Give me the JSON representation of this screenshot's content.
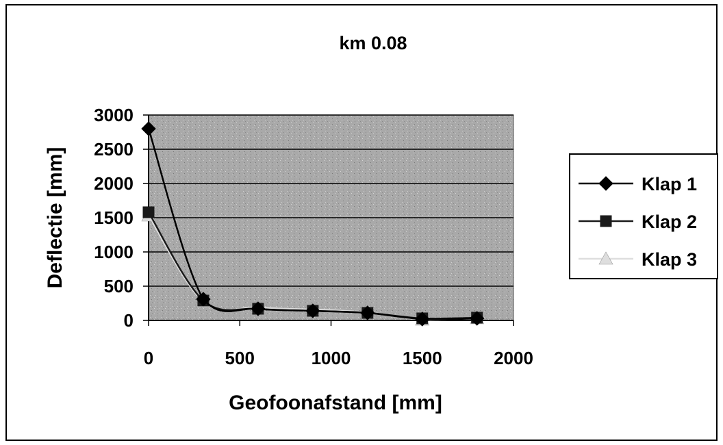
{
  "chart_data": {
    "type": "line",
    "title": "km 0.08",
    "xlabel": "Geofoonafstand [mm]",
    "ylabel": "Deflectie [mm]",
    "xlim": [
      0,
      2000
    ],
    "ylim": [
      0,
      3000
    ],
    "x_ticks": [
      "0",
      "500",
      "1000",
      "1500",
      "2000"
    ],
    "y_ticks": [
      "0",
      "500",
      "1000",
      "1500",
      "2000",
      "2500",
      "3000"
    ],
    "grid": true,
    "legend_position": "right",
    "colors": {
      "plot_background": "#a9a9a9",
      "gridline": "#000000",
      "klap1": "#000000",
      "klap2": "#1a1a1a",
      "klap3": "#dedede"
    },
    "series": [
      {
        "name": "Klap 1",
        "marker": "diamond",
        "x": [
          0,
          300,
          600,
          900,
          1200,
          1500,
          1800
        ],
        "y": [
          2800,
          310,
          170,
          140,
          110,
          20,
          30
        ]
      },
      {
        "name": "Klap 2",
        "marker": "square",
        "x": [
          0,
          300,
          600,
          900,
          1200,
          1500,
          1800
        ],
        "y": [
          1580,
          290,
          170,
          140,
          110,
          30,
          40
        ]
      },
      {
        "name": "Klap 3",
        "marker": "triangle",
        "x": [
          0,
          300,
          600,
          900,
          1200,
          1500,
          1800
        ],
        "y": [
          1530,
          270,
          190,
          160,
          120,
          10,
          30
        ]
      }
    ]
  }
}
